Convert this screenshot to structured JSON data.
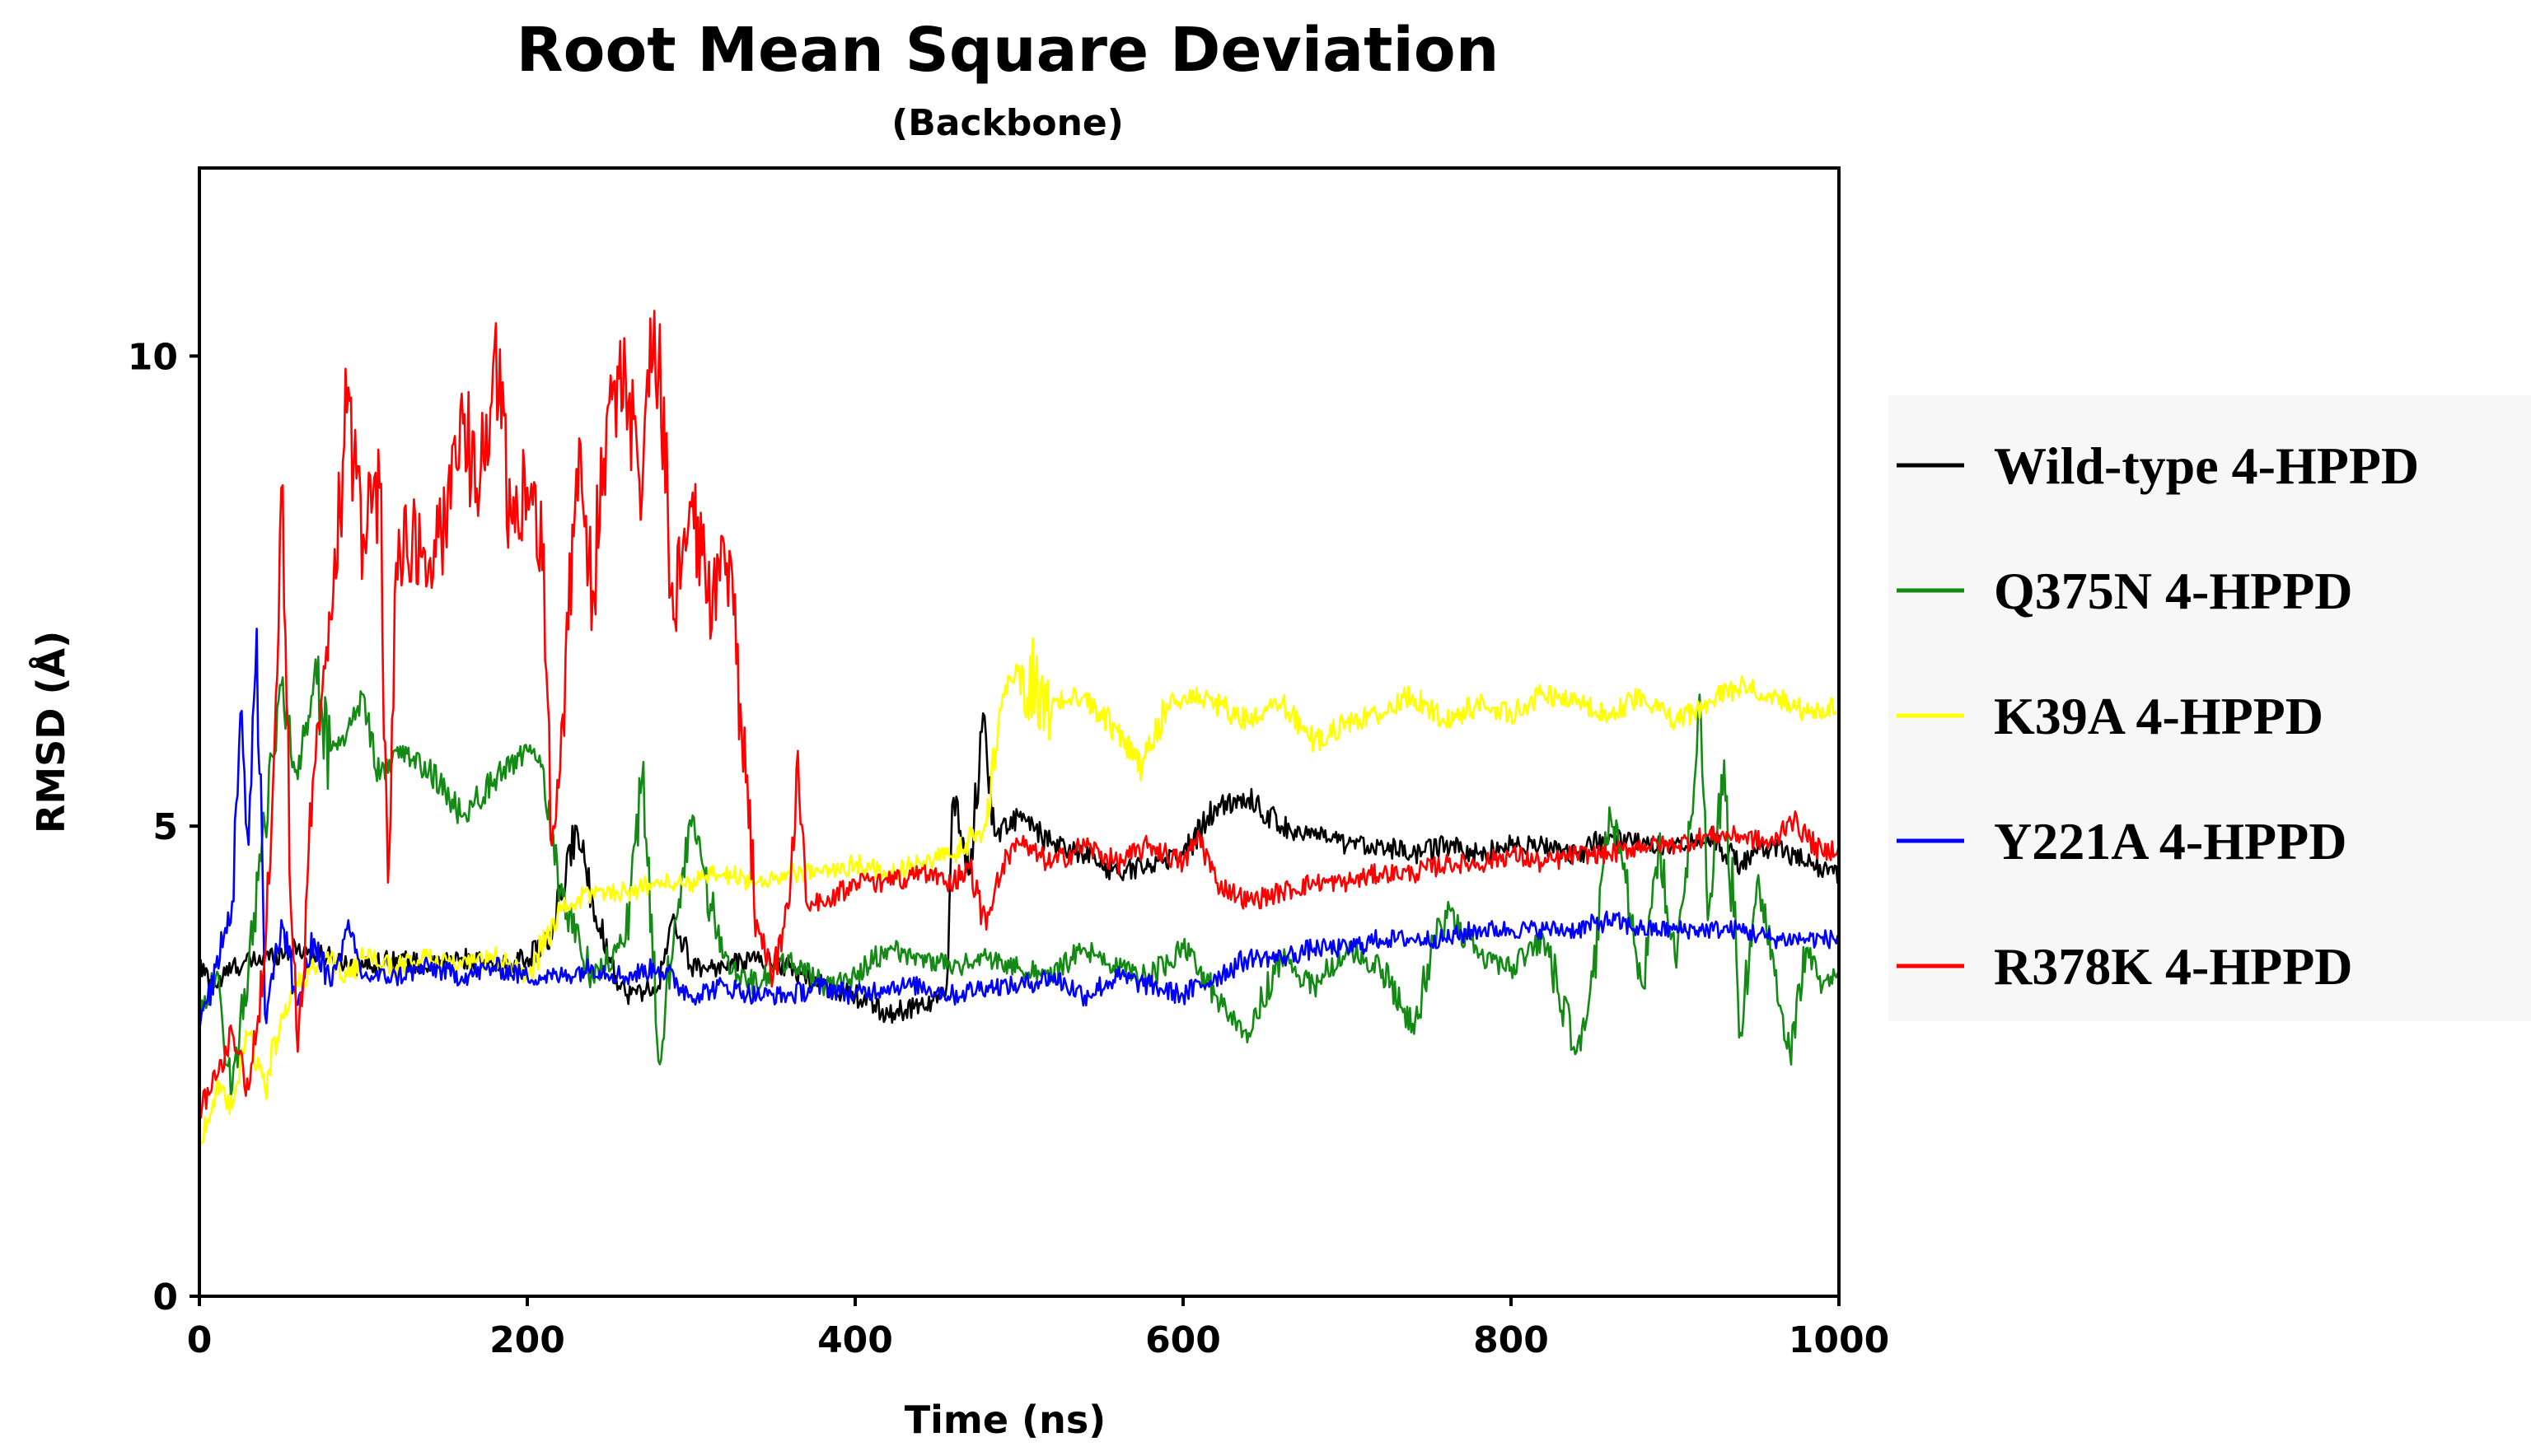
{
  "chart_data": {
    "type": "line",
    "title": "Root Mean Square Deviation",
    "subtitle": "(Backbone)",
    "xlabel": "Time (ns)",
    "ylabel": "RMSD (Å)",
    "xlim": [
      0,
      1000
    ],
    "ylim": [
      0,
      12
    ],
    "xticks": [
      0,
      200,
      400,
      600,
      800,
      1000
    ],
    "yticks": [
      0,
      5,
      10
    ],
    "legend_position": "right",
    "grid": false,
    "series": [
      {
        "name": "Wild-type 4-HPPD",
        "color": "#000000",
        "x": [
          0,
          10,
          20,
          40,
          60,
          80,
          100,
          120,
          140,
          160,
          180,
          200,
          215,
          230,
          240,
          250,
          260,
          280,
          290,
          300,
          320,
          340,
          360,
          380,
          400,
          420,
          440,
          455,
          460,
          470,
          478,
          485,
          500,
          520,
          540,
          560,
          580,
          600,
          620,
          640,
          660,
          680,
          700,
          720,
          740,
          760,
          780,
          800,
          820,
          840,
          860,
          880,
          900,
          920,
          940,
          960,
          980,
          1000
        ],
        "y": [
          3.5,
          3.3,
          3.5,
          3.6,
          3.7,
          3.6,
          3.5,
          3.6,
          3.5,
          3.6,
          3.5,
          3.6,
          3.8,
          5.0,
          4.2,
          3.6,
          3.2,
          3.3,
          4.0,
          3.5,
          3.5,
          3.6,
          3.5,
          3.3,
          3.2,
          3.0,
          3.1,
          3.2,
          5.3,
          4.5,
          6.2,
          4.9,
          5.1,
          4.8,
          4.7,
          4.5,
          4.6,
          4.7,
          5.2,
          5.3,
          5.0,
          4.9,
          4.8,
          4.8,
          4.7,
          4.8,
          4.7,
          4.8,
          4.8,
          4.7,
          4.9,
          4.8,
          4.8,
          4.9,
          4.6,
          4.8,
          4.6,
          4.5
        ]
      },
      {
        "name": "Q375N 4-HPPD",
        "color": "#138a13",
        "x": [
          0,
          10,
          20,
          30,
          40,
          50,
          60,
          70,
          80,
          90,
          100,
          110,
          120,
          140,
          160,
          180,
          200,
          210,
          220,
          240,
          260,
          270,
          280,
          290,
          300,
          320,
          340,
          360,
          380,
          400,
          420,
          440,
          460,
          480,
          500,
          520,
          540,
          560,
          580,
          600,
          620,
          640,
          660,
          680,
          700,
          720,
          740,
          760,
          780,
          800,
          820,
          840,
          850,
          860,
          870,
          880,
          890,
          900,
          910,
          915,
          920,
          930,
          940,
          950,
          960,
          970,
          980,
          990,
          1000
        ],
        "y": [
          3.0,
          3.4,
          2.2,
          3.5,
          5.0,
          6.5,
          5.5,
          6.6,
          5.8,
          6.0,
          6.4,
          5.5,
          5.8,
          5.6,
          5.1,
          5.5,
          5.8,
          5.6,
          4.3,
          3.4,
          3.8,
          5.5,
          2.5,
          4.0,
          5.0,
          3.6,
          3.3,
          3.6,
          3.3,
          3.4,
          3.7,
          3.6,
          3.5,
          3.6,
          3.5,
          3.4,
          3.7,
          3.5,
          3.4,
          3.7,
          3.2,
          2.8,
          3.6,
          3.3,
          3.7,
          3.5,
          2.9,
          4.1,
          3.6,
          3.5,
          3.8,
          2.6,
          3.4,
          5.2,
          4.4,
          3.3,
          4.8,
          3.6,
          5.1,
          6.4,
          4.0,
          5.7,
          2.8,
          4.4,
          3.6,
          2.6,
          3.7,
          3.3,
          3.4
        ]
      },
      {
        "name": "K39A 4-HPPD",
        "color": "#ffff00",
        "x": [
          0,
          10,
          20,
          30,
          40,
          50,
          60,
          70,
          80,
          90,
          100,
          120,
          140,
          160,
          180,
          200,
          220,
          240,
          260,
          280,
          300,
          320,
          340,
          360,
          380,
          400,
          420,
          440,
          460,
          480,
          490,
          500,
          520,
          540,
          560,
          575,
          590,
          610,
          640,
          660,
          680,
          700,
          720,
          740,
          760,
          780,
          800,
          820,
          840,
          860,
          880,
          900,
          920,
          940,
          960,
          980,
          1000
        ],
        "y": [
          1.6,
          2.2,
          2.0,
          2.8,
          2.2,
          3.0,
          3.3,
          3.5,
          3.6,
          3.4,
          3.6,
          3.5,
          3.6,
          3.5,
          3.6,
          3.4,
          4.1,
          4.3,
          4.3,
          4.4,
          4.4,
          4.5,
          4.4,
          4.5,
          4.5,
          4.6,
          4.5,
          4.6,
          4.7,
          5.0,
          6.4,
          6.7,
          6.3,
          6.4,
          6.0,
          5.6,
          6.3,
          6.4,
          6.1,
          6.3,
          5.9,
          6.1,
          6.2,
          6.4,
          6.1,
          6.3,
          6.2,
          6.4,
          6.3,
          6.2,
          6.4,
          6.1,
          6.3,
          6.5,
          6.4,
          6.2,
          6.3
        ]
      },
      {
        "name": "Y221A 4-HPPD",
        "color": "#0000ff",
        "x": [
          0,
          10,
          20,
          25,
          30,
          35,
          40,
          50,
          60,
          70,
          80,
          90,
          100,
          120,
          140,
          160,
          180,
          200,
          220,
          240,
          260,
          280,
          300,
          320,
          340,
          360,
          380,
          400,
          420,
          440,
          460,
          480,
          500,
          520,
          540,
          560,
          580,
          600,
          620,
          640,
          660,
          680,
          700,
          720,
          740,
          760,
          780,
          800,
          820,
          840,
          860,
          880,
          900,
          920,
          940,
          960,
          980,
          1000
        ],
        "y": [
          2.8,
          3.5,
          4.2,
          6.2,
          4.8,
          7.1,
          3.0,
          4.0,
          3.1,
          3.8,
          3.3,
          3.9,
          3.4,
          3.4,
          3.5,
          3.4,
          3.5,
          3.4,
          3.4,
          3.5,
          3.4,
          3.5,
          3.2,
          3.3,
          3.2,
          3.2,
          3.3,
          3.2,
          3.3,
          3.3,
          3.2,
          3.3,
          3.3,
          3.4,
          3.2,
          3.4,
          3.3,
          3.2,
          3.4,
          3.6,
          3.6,
          3.7,
          3.7,
          3.8,
          3.8,
          3.8,
          3.9,
          3.9,
          3.9,
          3.9,
          4.0,
          3.9,
          3.9,
          3.9,
          3.9,
          3.8,
          3.8,
          3.8
        ]
      },
      {
        "name": "R378K 4-HPPD",
        "color": "#ff0000",
        "x": [
          0,
          10,
          20,
          30,
          40,
          45,
          50,
          55,
          60,
          70,
          80,
          90,
          100,
          110,
          115,
          120,
          130,
          140,
          150,
          160,
          170,
          180,
          190,
          200,
          210,
          215,
          220,
          230,
          240,
          250,
          260,
          270,
          275,
          280,
          290,
          300,
          310,
          320,
          330,
          340,
          350,
          360,
          365,
          370,
          380,
          400,
          420,
          440,
          460,
          470,
          480,
          490,
          500,
          520,
          540,
          560,
          580,
          600,
          610,
          620,
          630,
          640,
          660,
          680,
          700,
          720,
          740,
          760,
          780,
          800,
          820,
          840,
          860,
          880,
          900,
          920,
          940,
          960,
          970,
          980,
          990,
          1000
        ],
        "y": [
          2.0,
          2.3,
          2.8,
          2.2,
          3.6,
          5.5,
          8.6,
          4.5,
          2.6,
          5.6,
          7.2,
          9.4,
          8.1,
          8.6,
          4.4,
          7.8,
          8.1,
          7.8,
          8.2,
          9.6,
          8.3,
          10.1,
          8.3,
          8.6,
          8.0,
          4.8,
          5.6,
          8.8,
          7.5,
          9.5,
          9.8,
          8.5,
          10.4,
          9.8,
          7.2,
          8.4,
          7.4,
          8.0,
          6.3,
          4.0,
          3.4,
          4.2,
          5.8,
          4.2,
          4.2,
          4.4,
          4.4,
          4.5,
          4.4,
          4.6,
          3.9,
          4.6,
          4.8,
          4.6,
          4.8,
          4.6,
          4.8,
          4.6,
          4.9,
          4.4,
          4.3,
          4.2,
          4.3,
          4.4,
          4.4,
          4.5,
          4.5,
          4.6,
          4.6,
          4.7,
          4.6,
          4.7,
          4.7,
          4.8,
          4.8,
          4.9,
          4.9,
          4.8,
          5.1,
          4.9,
          4.7,
          4.8
        ]
      }
    ]
  }
}
